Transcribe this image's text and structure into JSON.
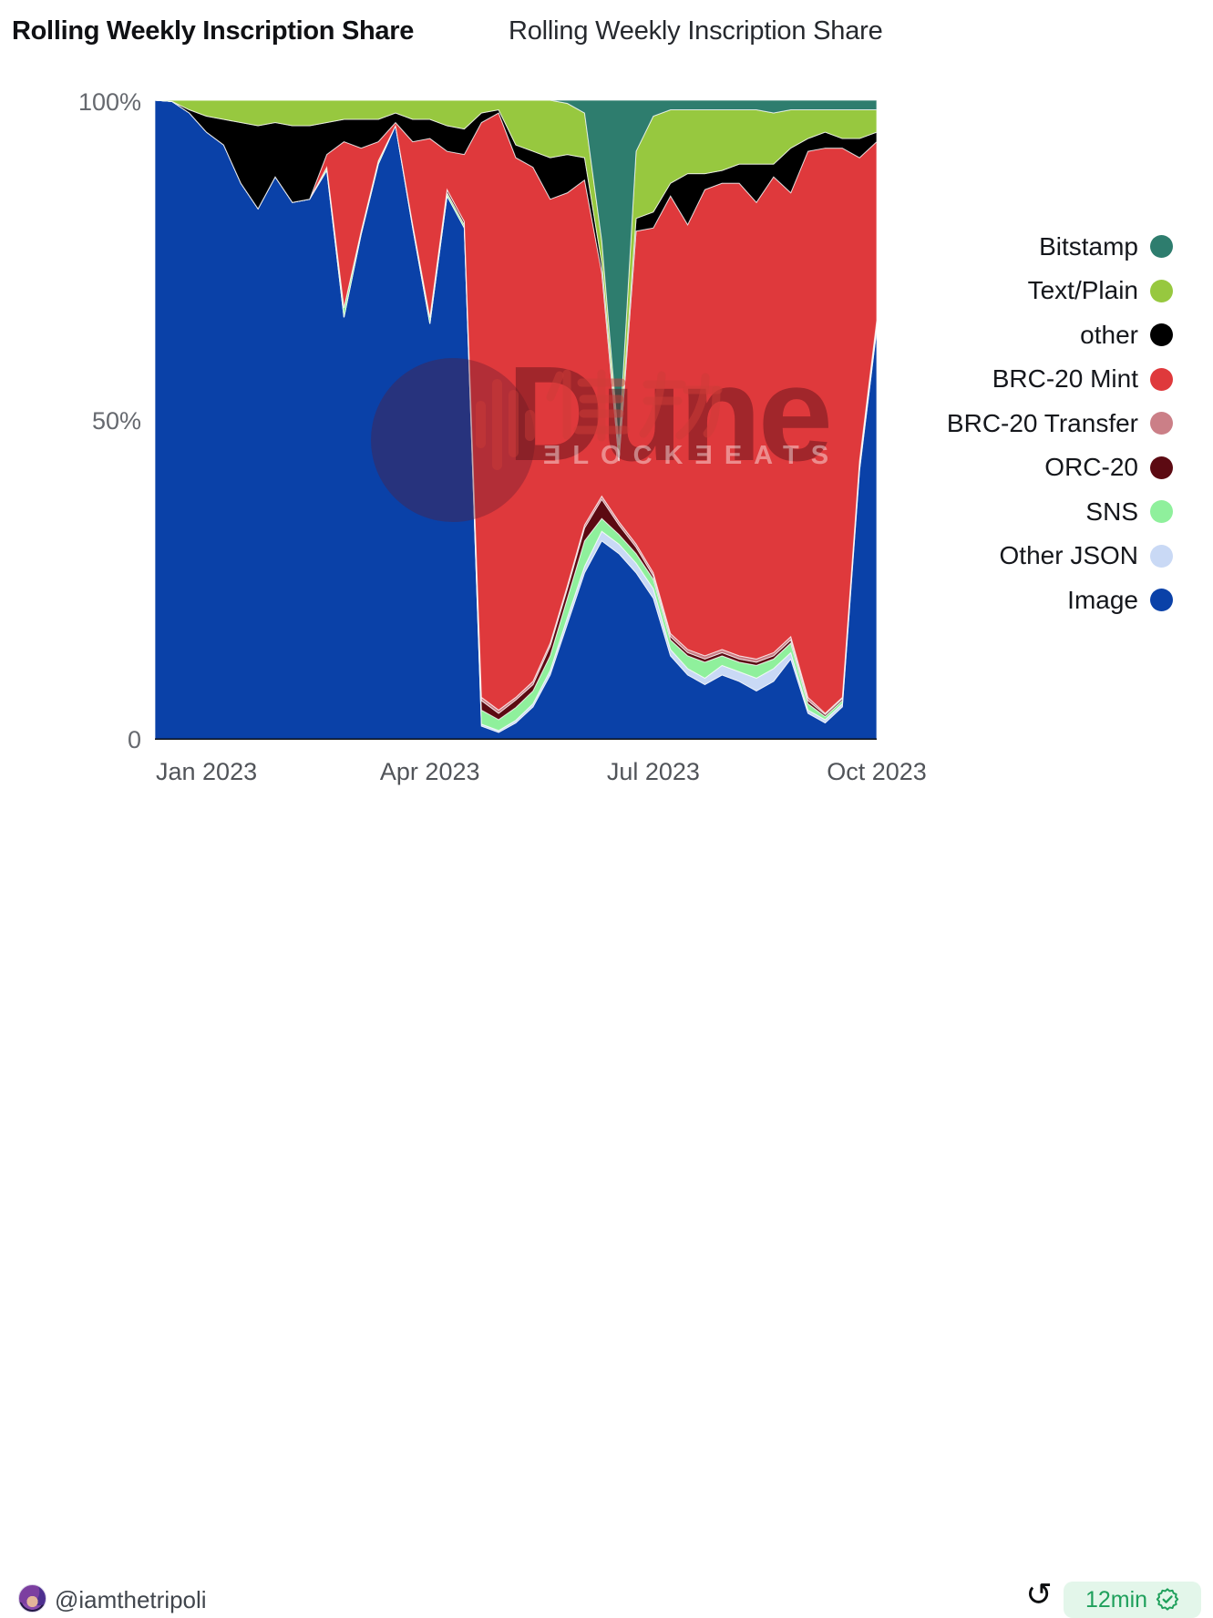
{
  "header": {
    "query_title": "Rolling Weekly Inscription Share",
    "viz_title": "Rolling Weekly Inscription Share"
  },
  "watermark": {
    "brand": "Dune",
    "stylized_text": "ƎLOCKƎEATS"
  },
  "footer": {
    "author_handle": "@iamthetripoli",
    "refresh_age": "12min",
    "refresh_glyph": "↺"
  },
  "chart_data": {
    "type": "area",
    "stacking": "percent",
    "title": "Rolling Weekly Inscription Share",
    "xlabel": "",
    "ylabel": "",
    "ylim": [
      0,
      100
    ],
    "grid": false,
    "legend_position": "right",
    "x": [
      "2022-12-11",
      "2022-12-18",
      "2022-12-25",
      "2023-01-01",
      "2023-01-08",
      "2023-01-15",
      "2023-01-22",
      "2023-01-29",
      "2023-02-05",
      "2023-02-12",
      "2023-02-19",
      "2023-02-26",
      "2023-03-05",
      "2023-03-12",
      "2023-03-19",
      "2023-03-26",
      "2023-04-02",
      "2023-04-09",
      "2023-04-16",
      "2023-04-23",
      "2023-04-30",
      "2023-05-07",
      "2023-05-14",
      "2023-05-21",
      "2023-05-28",
      "2023-06-04",
      "2023-06-11",
      "2023-06-18",
      "2023-06-25",
      "2023-07-02",
      "2023-07-09",
      "2023-07-16",
      "2023-07-23",
      "2023-07-30",
      "2023-08-06",
      "2023-08-13",
      "2023-08-20",
      "2023-08-27",
      "2023-09-03",
      "2023-09-10",
      "2023-09-17",
      "2023-09-24",
      "2023-10-01"
    ],
    "x_tick_indices": [
      3,
      16,
      29,
      42
    ],
    "x_tick_labels": [
      "Jan 2023",
      "Apr 2023",
      "Jul 2023",
      "Oct 2023"
    ],
    "y_tick_labels": [
      "100%",
      "50%",
      "0"
    ],
    "y_tick_values": [
      100,
      50,
      0
    ],
    "series_bottom_to_top": [
      {
        "name": "Image",
        "color": "#0a41a8",
        "values": [
          100,
          99.8,
          98,
          95,
          93,
          87,
          83,
          88,
          84,
          84.5,
          89,
          66,
          79,
          90,
          96,
          80,
          65,
          85,
          80,
          2,
          1,
          2.5,
          5,
          10,
          18,
          26,
          31,
          29,
          26,
          22,
          13,
          10,
          8.5,
          10,
          9,
          7.5,
          9,
          12.5,
          4,
          2.5,
          5,
          42,
          64
        ]
      },
      {
        "name": "Other JSON",
        "color": "#c9d9f5",
        "values": [
          0,
          0,
          0,
          0,
          0,
          0,
          0,
          0,
          0,
          0,
          0,
          0,
          0,
          0,
          0,
          0,
          0,
          0,
          0,
          0.3,
          0.3,
          0.4,
          0.5,
          0.7,
          1,
          1,
          1.5,
          1.5,
          1.5,
          1.5,
          1,
          1,
          1,
          1.5,
          1.5,
          2,
          2,
          1,
          0.5,
          0.5,
          0.5,
          0.5,
          0.5
        ]
      },
      {
        "name": "SNS",
        "color": "#8ff09c",
        "values": [
          0,
          0,
          0,
          0,
          0,
          0,
          0,
          0,
          0,
          0,
          0.5,
          1.5,
          0.5,
          0.5,
          0,
          0.5,
          1,
          0.5,
          0.5,
          2.2,
          1.7,
          2,
          2,
          2.3,
          3,
          4,
          2,
          1.5,
          1.5,
          1.5,
          1.5,
          2,
          2.5,
          1.5,
          1.5,
          2,
          1.5,
          1.5,
          1,
          0.5,
          0.5,
          0.5,
          0.5
        ]
      },
      {
        "name": "ORC-20",
        "color": "#5c0a12",
        "values": [
          0,
          0,
          0,
          0,
          0,
          0,
          0,
          0,
          0,
          0,
          0,
          0,
          0,
          0,
          0,
          0,
          0,
          0.5,
          0.5,
          1.5,
          1,
          1.2,
          1,
          1.5,
          1.5,
          2,
          3,
          1.5,
          1,
          0.5,
          0.5,
          0.5,
          0.5,
          0.5,
          0.5,
          0.5,
          0.5,
          0.5,
          0.5,
          0.3,
          0.3,
          0.2,
          0.2
        ]
      },
      {
        "name": "BRC-20 Transfer",
        "color": "#cb7f87",
        "values": [
          0,
          0,
          0,
          0,
          0,
          0,
          0,
          0,
          0,
          0,
          0,
          0,
          0,
          0,
          0,
          0,
          0,
          0,
          0,
          0.5,
          0.5,
          0.4,
          0.5,
          0.5,
          0.5,
          0.5,
          0.5,
          0.5,
          0.5,
          0.5,
          0.5,
          0.5,
          0.5,
          0.5,
          0.5,
          0.5,
          0.5,
          0.5,
          0.5,
          0.2,
          0.2,
          0.3,
          0.3
        ]
      },
      {
        "name": "BRC-20 Mint",
        "color": "#df393c",
        "values": [
          0,
          0,
          0,
          0,
          0,
          0,
          0,
          0,
          0,
          0,
          2,
          26,
          13,
          3,
          0.5,
          13,
          28,
          6,
          10.5,
          90,
          93.5,
          84.5,
          80.5,
          69.5,
          61.5,
          54,
          35,
          9.5,
          49,
          54,
          68.5,
          66.5,
          73,
          73,
          74,
          71.5,
          74.5,
          69.5,
          85.5,
          88.5,
          86,
          47.5,
          28
        ]
      },
      {
        "name": "other",
        "color": "#000000",
        "values": [
          0,
          0,
          0.5,
          2.5,
          4,
          9.5,
          13,
          8.5,
          12,
          11.5,
          5,
          3.5,
          4.5,
          3.5,
          1.5,
          3.5,
          3,
          4,
          4,
          1.5,
          0.5,
          2,
          2.5,
          6.5,
          6,
          3.5,
          1.5,
          1,
          2,
          2.5,
          2,
          8,
          2.5,
          2,
          3,
          6,
          2,
          7,
          2,
          2.5,
          1.5,
          3,
          1.5
        ]
      },
      {
        "name": "Text/Plain",
        "color": "#97c83f",
        "values": [
          0,
          0.2,
          1.5,
          2.5,
          3,
          3.5,
          4,
          3.5,
          4,
          4,
          3.5,
          3,
          3,
          3,
          2,
          3,
          3,
          4,
          4.5,
          2,
          1.5,
          7,
          8,
          9,
          8,
          7,
          3.5,
          1.5,
          10.5,
          15,
          11.5,
          10,
          10,
          9.5,
          8.5,
          8.5,
          8,
          6,
          4.5,
          3.5,
          4.5,
          4.5,
          3.5
        ]
      },
      {
        "name": "Bitstamp",
        "color": "#2e7d6e",
        "values": [
          0,
          0,
          0,
          0,
          0,
          0,
          0,
          0,
          0,
          0,
          0,
          0,
          0,
          0,
          0,
          0,
          0,
          0,
          0,
          0,
          0,
          0,
          0,
          0,
          0.5,
          2,
          22,
          54,
          8,
          2.5,
          1.5,
          1.5,
          1.5,
          1.5,
          1.5,
          1.5,
          2,
          1.5,
          1.5,
          1.5,
          1.5,
          1.5,
          1.5
        ]
      }
    ]
  }
}
